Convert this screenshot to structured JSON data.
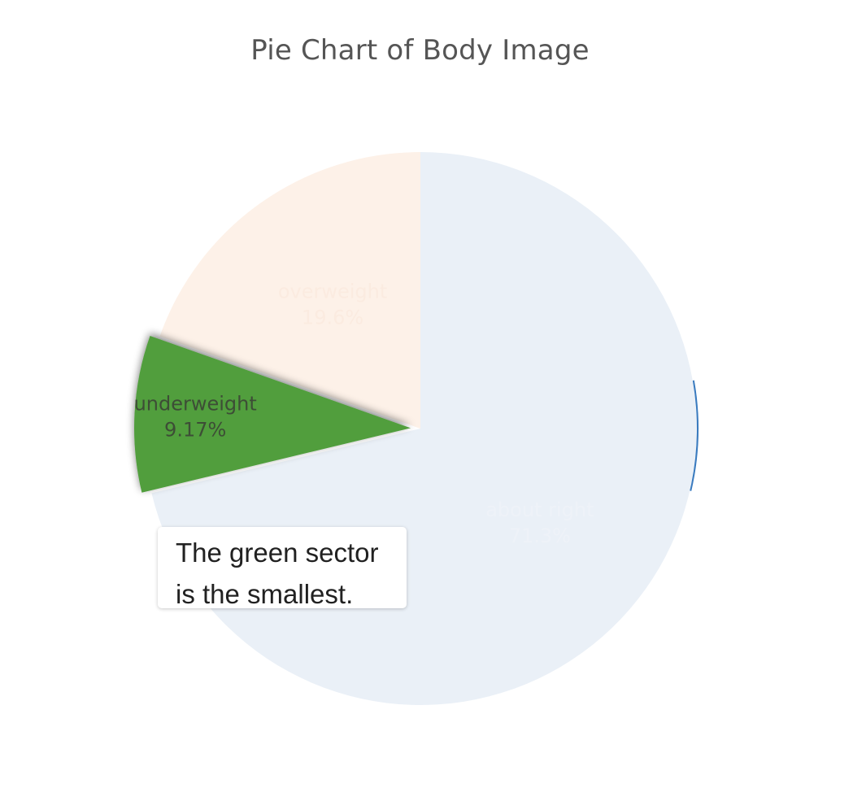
{
  "chart_data": {
    "type": "pie",
    "title": "Pie Chart of Body Image",
    "slices": [
      {
        "label": "about right",
        "value": 71.3,
        "text": "71.3%",
        "color": "#eaf0f7",
        "text_color": "#eef2f8",
        "pulled": false
      },
      {
        "label": "underweight",
        "value": 9.17,
        "text": "9.17%",
        "color": "#519e3e",
        "text_color": "#3d4d36",
        "pulled": true
      },
      {
        "label": "overweight",
        "value": 19.6,
        "text": "19.6%",
        "color": "#fdf1e8",
        "text_color": "#fbebe0",
        "pulled": false
      }
    ],
    "edge_accent_color": "#3a7bbf",
    "annotation": {
      "lines": [
        "The green sector",
        "is the smallest."
      ]
    }
  }
}
